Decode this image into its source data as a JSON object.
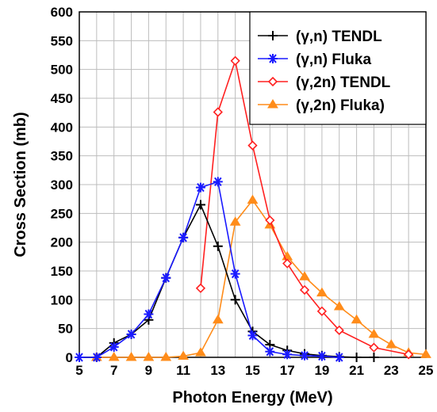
{
  "chart_data": {
    "type": "line",
    "title": "",
    "xlabel": "Photon Energy (MeV)",
    "ylabel": "Cross Section (mb)",
    "xlim": [
      5,
      25
    ],
    "ylim": [
      0,
      600
    ],
    "xticks": [
      5,
      7,
      9,
      11,
      13,
      15,
      17,
      19,
      21,
      23,
      25
    ],
    "yticks": [
      0,
      50,
      100,
      150,
      200,
      250,
      300,
      350,
      400,
      450,
      500,
      550,
      600
    ],
    "x_minor_step": 1,
    "grid": true,
    "legend_position": "top-right",
    "series": [
      {
        "name": "(γ,n) TENDL",
        "color": "#000000",
        "marker": "plus",
        "points": [
          [
            5,
            0
          ],
          [
            6,
            0
          ],
          [
            7,
            25
          ],
          [
            8,
            40
          ],
          [
            9,
            65
          ],
          [
            10,
            138
          ],
          [
            11,
            208
          ],
          [
            12,
            265
          ],
          [
            13,
            193
          ],
          [
            14,
            100
          ],
          [
            15,
            45
          ],
          [
            16,
            22
          ],
          [
            17,
            12
          ],
          [
            18,
            6
          ],
          [
            19,
            3
          ],
          [
            20,
            1
          ],
          [
            21,
            0
          ],
          [
            22,
            0
          ]
        ]
      },
      {
        "name": "(γ,n) Fluka",
        "color": "#1a1aff",
        "marker": "asterisk",
        "points": [
          [
            5,
            0
          ],
          [
            6,
            0
          ],
          [
            7,
            18
          ],
          [
            8,
            40
          ],
          [
            9,
            75
          ],
          [
            10,
            138
          ],
          [
            11,
            208
          ],
          [
            12,
            295
          ],
          [
            13,
            305
          ],
          [
            14,
            145
          ],
          [
            15,
            38
          ],
          [
            16,
            10
          ],
          [
            17,
            5
          ],
          [
            18,
            3
          ],
          [
            19,
            2
          ],
          [
            20,
            0
          ]
        ]
      },
      {
        "name": "(γ,2n) TENDL",
        "color": "#ff2020",
        "marker": "diamond",
        "points": [
          [
            12,
            120
          ],
          [
            13,
            426
          ],
          [
            14,
            515
          ],
          [
            15,
            368
          ],
          [
            16,
            238
          ],
          [
            17,
            163
          ],
          [
            18,
            117
          ],
          [
            19,
            80
          ],
          [
            20,
            47
          ],
          [
            22,
            17
          ],
          [
            24,
            5
          ]
        ]
      },
      {
        "name": "(γ,2n) Fluka)",
        "color": "#ff8c1a",
        "marker": "triangle",
        "points": [
          [
            6,
            0
          ],
          [
            7,
            0
          ],
          [
            8,
            0
          ],
          [
            9,
            0
          ],
          [
            10,
            0
          ],
          [
            11,
            2
          ],
          [
            12,
            8
          ],
          [
            13,
            65
          ],
          [
            14,
            235
          ],
          [
            15,
            273
          ],
          [
            16,
            230
          ],
          [
            17,
            175
          ],
          [
            18,
            140
          ],
          [
            19,
            112
          ],
          [
            20,
            88
          ],
          [
            21,
            65
          ],
          [
            22,
            40
          ],
          [
            23,
            22
          ],
          [
            24,
            8
          ],
          [
            25,
            5
          ]
        ]
      }
    ]
  }
}
